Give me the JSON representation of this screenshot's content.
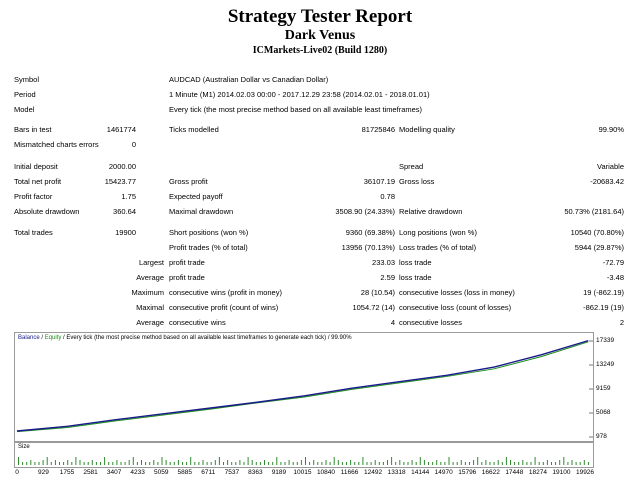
{
  "header": {
    "title": "Strategy Tester Report",
    "subtitle": "Dark Venus",
    "server": "ICMarkets-Live02 (Build 1280)"
  },
  "info": [
    {
      "label": "Symbol",
      "value": "AUDCAD (Australian Dollar vs Canadian Dollar)"
    },
    {
      "label": "Period",
      "value": "1 Minute (M1) 2014.02.03 00:00 - 2017.12.29 23:58 (2014.02.01 - 2018.01.01)"
    },
    {
      "label": "Model",
      "value": "Every tick (the most precise method based on all available least timeframes)"
    }
  ],
  "bars": {
    "bars_label": "Bars in test",
    "bars_value": "1461774",
    "ticks_label": "Ticks modelled",
    "ticks_value": "81725846",
    "quality_label": "Modelling quality",
    "quality_value": "99.90%",
    "mismatch_label": "Mismatched charts errors",
    "mismatch_value": "0"
  },
  "deposit": {
    "initial_label": "Initial deposit",
    "initial_value": "2000.00",
    "spread_label": "Spread",
    "spread_value": "Variable"
  },
  "profit": {
    "net_label": "Total net profit",
    "net_value": "15423.77",
    "gross_profit_label": "Gross profit",
    "gross_profit_value": "36107.19",
    "gross_loss_label": "Gross loss",
    "gross_loss_value": "-20683.42",
    "factor_label": "Profit factor",
    "factor_value": "1.75",
    "payoff_label": "Expected payoff",
    "payoff_value": "0.78",
    "abs_dd_label": "Absolute drawdown",
    "abs_dd_value": "360.64",
    "max_dd_label": "Maximal drawdown",
    "max_dd_value": "3508.90 (24.33%)",
    "rel_dd_label": "Relative drawdown",
    "rel_dd_value": "50.73% (2181.64)"
  },
  "trades": {
    "total_label": "Total trades",
    "total_value": "19900",
    "short_label": "Short positions (won %)",
    "short_value": "9360 (69.38%)",
    "long_label": "Long positions (won %)",
    "long_value": "10540 (70.80%)",
    "profit_trades_label": "Profit trades (% of total)",
    "profit_trades_value": "13956 (70.13%)",
    "loss_trades_label": "Loss trades (% of total)",
    "loss_trades_value": "5944 (29.87%)",
    "largest_label": "Largest",
    "largest_profit_label": "profit trade",
    "largest_profit_value": "233.03",
    "largest_loss_label": "loss trade",
    "largest_loss_value": "-72.79",
    "average_label": "Average",
    "average_profit_label": "profit trade",
    "average_profit_value": "2.59",
    "average_loss_label": "loss trade",
    "average_loss_value": "-3.48",
    "maximum_label": "Maximum",
    "max_wins_label": "consecutive wins (profit in money)",
    "max_wins_value": "28 (10.54)",
    "max_losses_label": "consecutive losses (loss in money)",
    "max_losses_value": "19 (-862.19)",
    "maximal_label": "Maximal",
    "maximal_profit_label": "consecutive profit (count of wins)",
    "maximal_profit_value": "1054.72 (14)",
    "maximal_loss_label": "consecutive loss (count of losses)",
    "maximal_loss_value": "-862.19 (19)",
    "average2_label": "Average",
    "avg_wins_label": "consecutive wins",
    "avg_wins_value": "4",
    "avg_losses_label": "consecutive losses",
    "avg_losses_value": "2"
  },
  "chart_legend": {
    "balance": "Balance",
    "sep": " / ",
    "equity": "Equity",
    "rest": " / Every tick (the most precise method based on all available least timeframes to generate each tick) / 99.90%"
  },
  "size_label": "Size",
  "colors": {
    "balance": "#1a1a8c",
    "equity": "#1a8c1a",
    "size_bars": "#2e8b2e",
    "frame": "#9a9a9a"
  },
  "chart_data": {
    "type": "line",
    "y_ticks": [
      17339,
      13249,
      9159,
      5068,
      978
    ],
    "x_ticks": [
      0,
      929,
      1755,
      2581,
      3407,
      4233,
      5059,
      5885,
      6711,
      7537,
      8363,
      9189,
      10015,
      10840,
      11666,
      12492,
      13318,
      14144,
      14970,
      15796,
      16622,
      17448,
      18274,
      19100,
      19926
    ],
    "ylim": [
      978,
      17339
    ],
    "xlim": [
      0,
      19926
    ],
    "series": [
      {
        "name": "Balance",
        "x": [
          0,
          1755,
          3407,
          5059,
          6711,
          8363,
          10015,
          11666,
          13318,
          14970,
          16622,
          18274,
          19900
        ],
        "values": [
          2000,
          2800,
          3900,
          4900,
          5900,
          6900,
          8000,
          9300,
          10400,
          11500,
          12900,
          15000,
          17400
        ]
      },
      {
        "name": "Equity",
        "x": [
          0,
          1755,
          3407,
          5059,
          6711,
          8363,
          10015,
          11666,
          13318,
          14970,
          16622,
          18274,
          19900
        ],
        "values": [
          1900,
          2600,
          3700,
          4700,
          5700,
          6800,
          7800,
          9100,
          10200,
          11300,
          12600,
          14700,
          17200
        ]
      }
    ]
  }
}
